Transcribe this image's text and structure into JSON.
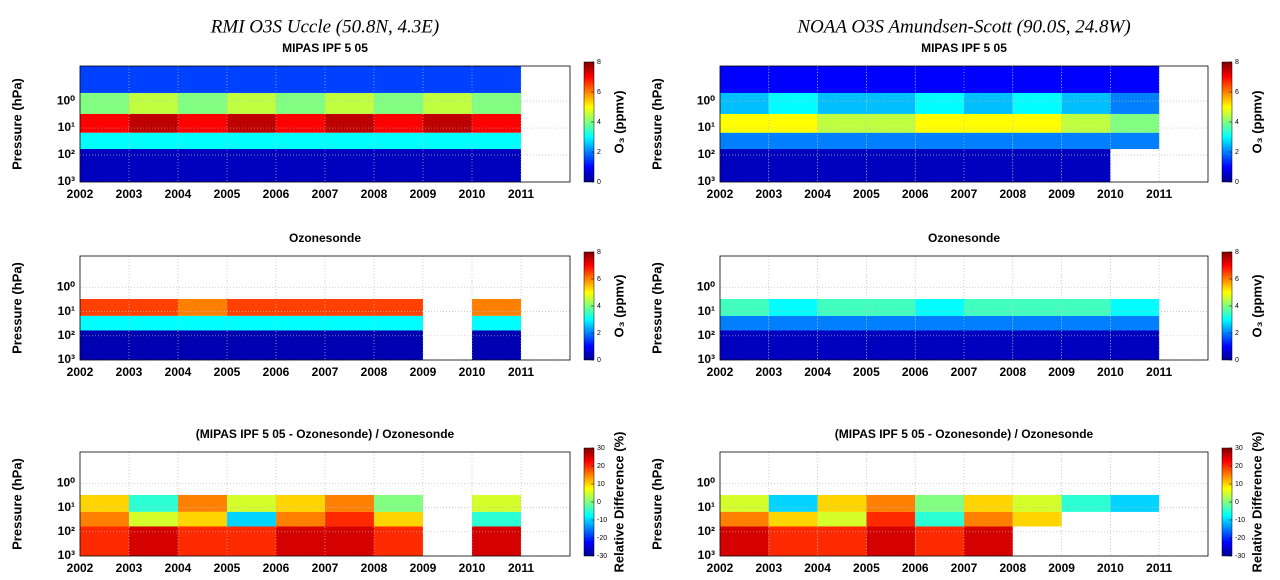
{
  "chart_data": [
    {
      "type": "heatmap",
      "suptitle": "RMI O3S Uccle (50.8N, 4.3E)",
      "title": "MIPAS IPF 5 05",
      "ylabel": "Pressure (hPa)",
      "clabel": "O₃ (ppmv)",
      "xlim": [
        2002,
        2012
      ],
      "xticks": [
        2002,
        2003,
        2004,
        2005,
        2006,
        2007,
        2008,
        2009,
        2010,
        2011
      ],
      "ylim": [
        1000,
        0.05
      ],
      "log_y": true,
      "grid": true,
      "yticks": [
        {
          "value": 1,
          "label": "10⁰"
        },
        {
          "value": 10,
          "label": "10¹"
        },
        {
          "value": 100,
          "label": "10²"
        },
        {
          "value": 1000,
          "label": "10³"
        }
      ],
      "x_bins": [
        2002,
        2003,
        2004,
        2005,
        2006,
        2007,
        2008,
        2009,
        2010,
        2011
      ],
      "y_bins": [
        0.05,
        0.5,
        3,
        15,
        60,
        1000
      ],
      "values": [
        [
          1.5,
          1.5,
          1.5,
          1.5,
          1.5,
          1.5,
          1.5,
          1.5,
          1.5
        ],
        [
          4,
          4.5,
          4,
          4.5,
          4,
          4.5,
          4,
          4.5,
          4
        ],
        [
          7,
          7.5,
          7,
          7.5,
          7,
          7.5,
          7,
          7.5,
          7
        ],
        [
          3,
          3,
          3,
          3,
          3,
          3,
          3,
          3,
          3
        ],
        [
          0.5,
          0.5,
          0.5,
          0.5,
          0.5,
          0.5,
          0.5,
          0.5,
          0.5
        ]
      ],
      "clim": [
        0,
        8
      ],
      "cticks": [
        0,
        2,
        4,
        6,
        8
      ]
    },
    {
      "type": "heatmap",
      "suptitle": "NOAA O3S Amundsen-Scott (90.0S, 24.8W)",
      "title": "MIPAS IPF 5 05",
      "ylabel": "Pressure (hPa)",
      "clabel": "O₃ (ppmv)",
      "xlim": [
        2002,
        2012
      ],
      "xticks": [
        2002,
        2003,
        2004,
        2005,
        2006,
        2007,
        2008,
        2009,
        2010,
        2011
      ],
      "ylim": [
        1000,
        0.05
      ],
      "log_y": true,
      "grid": true,
      "yticks": [
        {
          "value": 1,
          "label": "10⁰"
        },
        {
          "value": 10,
          "label": "10¹"
        },
        {
          "value": 100,
          "label": "10²"
        },
        {
          "value": 1000,
          "label": "10³"
        }
      ],
      "x_bins": [
        2002,
        2003,
        2004,
        2005,
        2006,
        2007,
        2008,
        2009,
        2010,
        2011
      ],
      "y_bins": [
        0.05,
        0.5,
        3,
        15,
        60,
        1000
      ],
      "values": [
        [
          1,
          1,
          1,
          1,
          1,
          1,
          1,
          1,
          1
        ],
        [
          2.5,
          3,
          2.5,
          2.5,
          3,
          2.5,
          3,
          2.5,
          2
        ],
        [
          5,
          5,
          4.5,
          4.5,
          5,
          5,
          5,
          4.5,
          4
        ],
        [
          2,
          2,
          2,
          2,
          2,
          2,
          2,
          2,
          2
        ],
        [
          0.5,
          0.5,
          0.5,
          0.5,
          0.5,
          0.5,
          0.5,
          0.5,
          null
        ]
      ],
      "clim": [
        0,
        8
      ],
      "cticks": [
        0,
        2,
        4,
        6,
        8
      ]
    },
    {
      "type": "heatmap",
      "title": "Ozonesonde",
      "ylabel": "Pressure (hPa)",
      "clabel": "O₃ (ppmv)",
      "xlim": [
        2002,
        2012
      ],
      "xticks": [
        2002,
        2003,
        2004,
        2005,
        2006,
        2007,
        2008,
        2009,
        2010,
        2011
      ],
      "ylim": [
        1000,
        0.05
      ],
      "log_y": true,
      "grid": true,
      "yticks": [
        {
          "value": 1,
          "label": "10⁰"
        },
        {
          "value": 10,
          "label": "10¹"
        },
        {
          "value": 100,
          "label": "10²"
        },
        {
          "value": 1000,
          "label": "10³"
        }
      ],
      "x_bins": [
        2002,
        2003,
        2004,
        2005,
        2006,
        2007,
        2008,
        2009,
        2010,
        2011
      ],
      "y_bins": [
        0.05,
        0.5,
        3,
        15,
        60,
        1000
      ],
      "values": [
        [
          null,
          null,
          null,
          null,
          null,
          null,
          null,
          null,
          null
        ],
        [
          null,
          null,
          null,
          null,
          null,
          null,
          null,
          null,
          null
        ],
        [
          6.5,
          6.5,
          6,
          6.5,
          6.5,
          6.5,
          6.5,
          null,
          6
        ],
        [
          3,
          3,
          3,
          3,
          3,
          3,
          3,
          null,
          3
        ],
        [
          0.4,
          0.4,
          0.4,
          0.4,
          0.4,
          0.4,
          0.4,
          null,
          0.4
        ]
      ],
      "clim": [
        0,
        8
      ],
      "cticks": [
        0,
        2,
        4,
        6,
        8
      ]
    },
    {
      "type": "heatmap",
      "title": "Ozonesonde",
      "ylabel": "Pressure (hPa)",
      "clabel": "O₃ (ppmv)",
      "xlim": [
        2002,
        2012
      ],
      "xticks": [
        2002,
        2003,
        2004,
        2005,
        2006,
        2007,
        2008,
        2009,
        2010,
        2011
      ],
      "ylim": [
        1000,
        0.05
      ],
      "log_y": true,
      "grid": true,
      "yticks": [
        {
          "value": 1,
          "label": "10⁰"
        },
        {
          "value": 10,
          "label": "10¹"
        },
        {
          "value": 100,
          "label": "10²"
        },
        {
          "value": 1000,
          "label": "10³"
        }
      ],
      "x_bins": [
        2002,
        2003,
        2004,
        2005,
        2006,
        2007,
        2008,
        2009,
        2010,
        2011
      ],
      "y_bins": [
        0.05,
        0.5,
        3,
        15,
        60,
        1000
      ],
      "values": [
        [
          null,
          null,
          null,
          null,
          null,
          null,
          null,
          null,
          null
        ],
        [
          null,
          null,
          null,
          null,
          null,
          null,
          null,
          null,
          null
        ],
        [
          3.5,
          3,
          3.5,
          3.5,
          3,
          3.5,
          3.5,
          3.5,
          3
        ],
        [
          2,
          2,
          2,
          2,
          2,
          2,
          2,
          2,
          2
        ],
        [
          0.5,
          0.5,
          0.5,
          0.5,
          0.5,
          0.5,
          0.5,
          0.5,
          0.5
        ]
      ],
      "clim": [
        0,
        8
      ],
      "cticks": [
        0,
        2,
        4,
        6,
        8
      ]
    },
    {
      "type": "heatmap",
      "title": "(MIPAS IPF 5 05 - Ozonesonde) / Ozonesonde",
      "ylabel": "Pressure (hPa)",
      "clabel": "Relative Difference (%)",
      "xlim": [
        2002,
        2012
      ],
      "xticks": [
        2002,
        2003,
        2004,
        2005,
        2006,
        2007,
        2008,
        2009,
        2010,
        2011
      ],
      "ylim": [
        1000,
        0.05
      ],
      "log_y": true,
      "grid": true,
      "yticks": [
        {
          "value": 1,
          "label": "10⁰"
        },
        {
          "value": 10,
          "label": "10¹"
        },
        {
          "value": 100,
          "label": "10²"
        },
        {
          "value": 1000,
          "label": "10³"
        }
      ],
      "x_bins": [
        2002,
        2003,
        2004,
        2005,
        2006,
        2007,
        2008,
        2009,
        2010,
        2011
      ],
      "y_bins": [
        0.05,
        0.5,
        3,
        15,
        60,
        1000
      ],
      "values": [
        [
          null,
          null,
          null,
          null,
          null,
          null,
          null,
          null,
          null
        ],
        [
          null,
          null,
          null,
          null,
          null,
          null,
          null,
          null,
          null
        ],
        [
          10,
          -5,
          15,
          5,
          10,
          15,
          0,
          null,
          5
        ],
        [
          15,
          5,
          10,
          -10,
          15,
          20,
          10,
          null,
          -5
        ],
        [
          20,
          25,
          20,
          20,
          25,
          25,
          20,
          null,
          25
        ]
      ],
      "clim": [
        -30,
        30
      ],
      "cticks": [
        -30,
        -20,
        -10,
        0,
        10,
        20,
        30
      ]
    },
    {
      "type": "heatmap",
      "title": "(MIPAS IPF 5 05 - Ozonesonde) / Ozonesonde",
      "ylabel": "Pressure (hPa)",
      "clabel": "Relative Difference (%)",
      "xlim": [
        2002,
        2012
      ],
      "xticks": [
        2002,
        2003,
        2004,
        2005,
        2006,
        2007,
        2008,
        2009,
        2010,
        2011
      ],
      "ylim": [
        1000,
        0.05
      ],
      "log_y": true,
      "grid": true,
      "yticks": [
        {
          "value": 1,
          "label": "10⁰"
        },
        {
          "value": 10,
          "label": "10¹"
        },
        {
          "value": 100,
          "label": "10²"
        },
        {
          "value": 1000,
          "label": "10³"
        }
      ],
      "x_bins": [
        2002,
        2003,
        2004,
        2005,
        2006,
        2007,
        2008,
        2009,
        2010,
        2011
      ],
      "y_bins": [
        0.05,
        0.5,
        3,
        15,
        60,
        1000
      ],
      "values": [
        [
          null,
          null,
          null,
          null,
          null,
          null,
          null,
          null,
          null
        ],
        [
          null,
          null,
          null,
          null,
          null,
          null,
          null,
          null,
          null
        ],
        [
          5,
          -10,
          10,
          15,
          0,
          10,
          5,
          -5,
          -10
        ],
        [
          15,
          10,
          5,
          20,
          -5,
          15,
          10,
          null,
          null
        ],
        [
          25,
          20,
          20,
          25,
          20,
          25,
          null,
          null,
          null
        ]
      ],
      "clim": [
        -30,
        30
      ],
      "cticks": [
        -30,
        -20,
        -10,
        0,
        10,
        20,
        30
      ]
    }
  ]
}
